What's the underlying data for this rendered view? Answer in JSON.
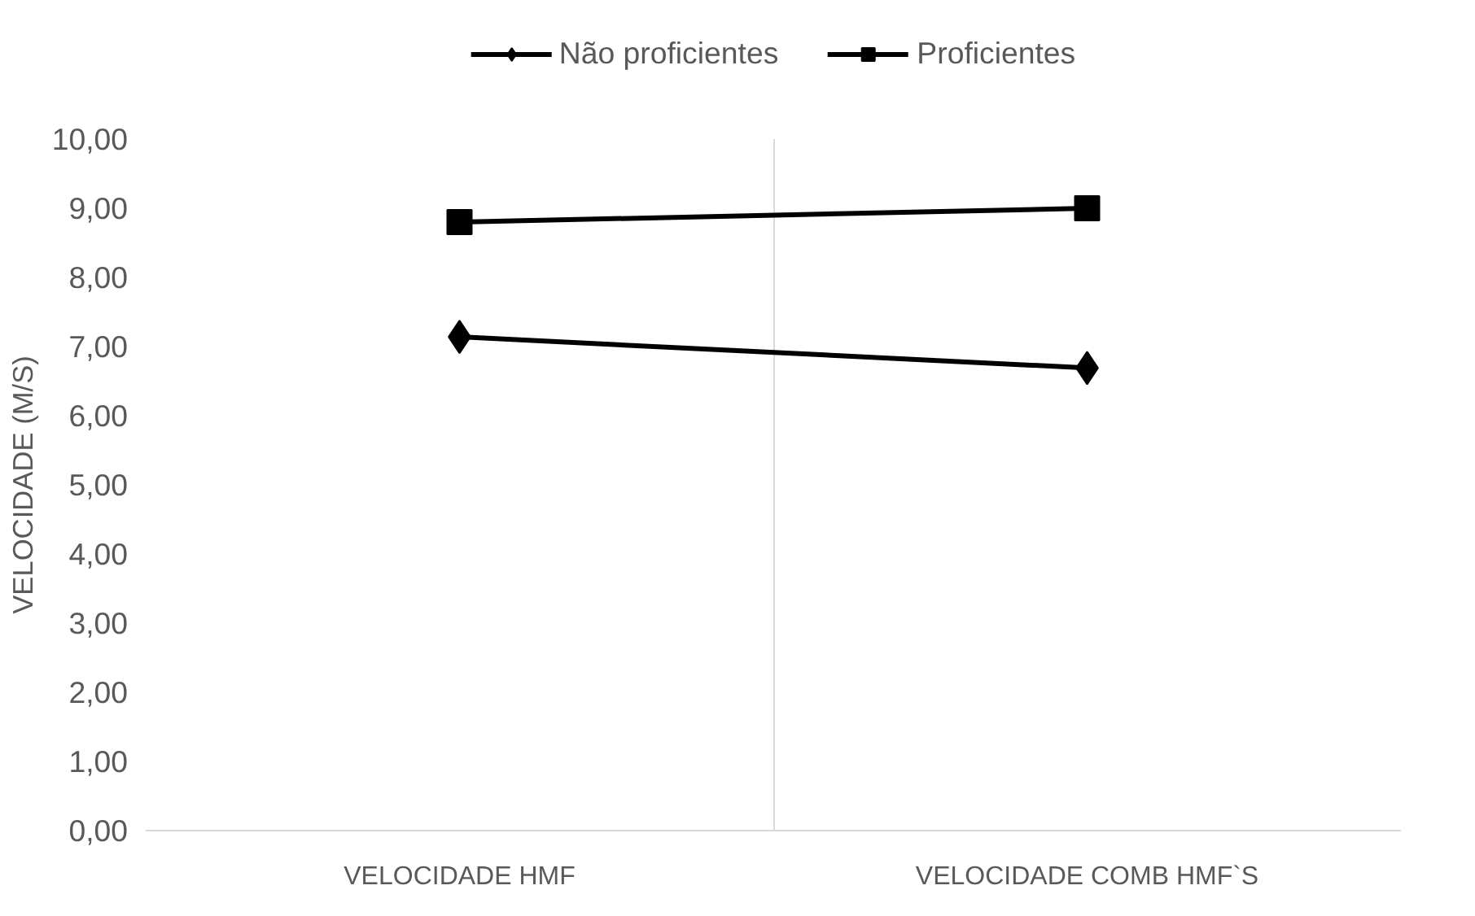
{
  "chart_data": {
    "type": "line",
    "ylabel": "VELOCIDADE (M/S)",
    "categories": [
      "VELOCIDADE HMF",
      "VELOCIDADE COMB HMF`S"
    ],
    "series": [
      {
        "name": "Não proficientes",
        "color": "#000000",
        "marker": "diamond",
        "values": [
          7.14,
          6.69
        ]
      },
      {
        "name": "Proficientes",
        "color": "#000000",
        "marker": "square",
        "values": [
          8.8,
          9.0
        ]
      }
    ],
    "ylim": [
      0,
      10
    ],
    "yticks": [
      {
        "value": 0,
        "label": "0,00"
      },
      {
        "value": 1,
        "label": "1,00"
      },
      {
        "value": 2,
        "label": "2,00"
      },
      {
        "value": 3,
        "label": "3,00"
      },
      {
        "value": 4,
        "label": "4,00"
      },
      {
        "value": 5,
        "label": "5,00"
      },
      {
        "value": 6,
        "label": "6,00"
      },
      {
        "value": 7,
        "label": "7,00"
      },
      {
        "value": 8,
        "label": "8,00"
      },
      {
        "value": 9,
        "label": "9,00"
      },
      {
        "value": 10,
        "label": "10,00"
      }
    ],
    "grid": "x",
    "legend": "top",
    "line_style": "solid"
  }
}
